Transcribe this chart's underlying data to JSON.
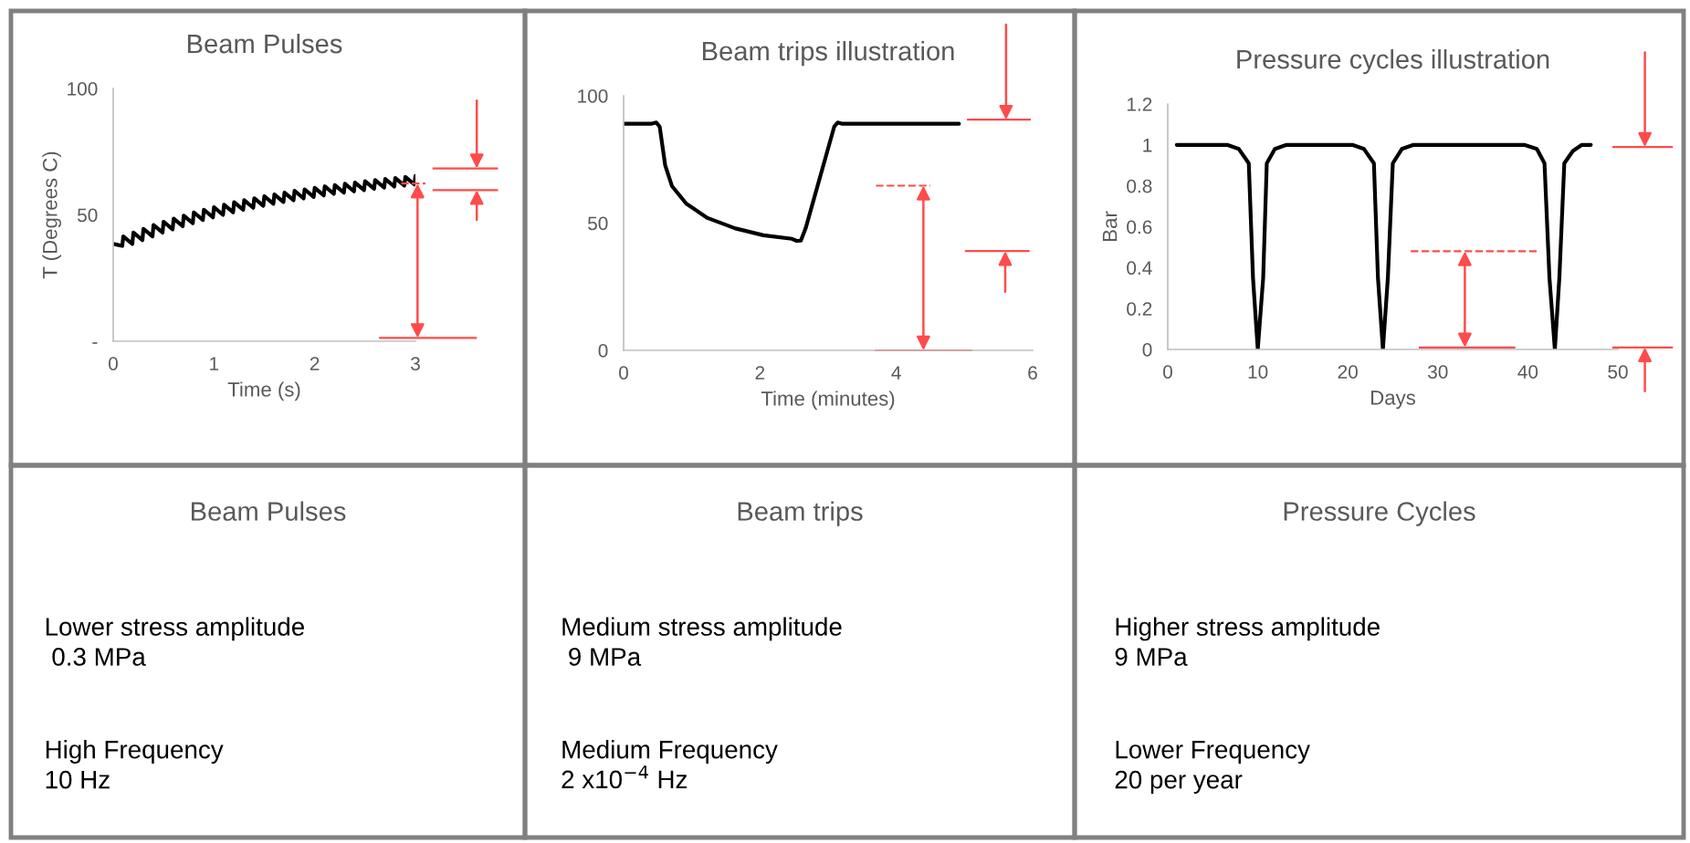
{
  "chart_data": [
    {
      "type": "line",
      "title": "Beam Pulses",
      "xlabel": "Time (s)",
      "ylabel": "T (Degrees C)",
      "xlim": [
        0,
        3
      ],
      "ylim": [
        0,
        100
      ],
      "xticks": [
        0,
        1,
        2,
        3
      ],
      "yticks": [
        {
          "value": 0,
          "label": "-"
        },
        50,
        100
      ],
      "series": [
        {
          "color": "#000000",
          "x": [
            0,
            0.09,
            0.1,
            0.19,
            0.2,
            0.29,
            0.3,
            0.39,
            0.4,
            0.49,
            0.5,
            0.59,
            0.6,
            0.69,
            0.7,
            0.79,
            0.8,
            0.89,
            0.9,
            0.99,
            1.0,
            1.09,
            1.1,
            1.19,
            1.2,
            1.29,
            1.3,
            1.39,
            1.4,
            1.49,
            1.5,
            1.59,
            1.6,
            1.69,
            1.7,
            1.79,
            1.8,
            1.89,
            1.9,
            1.99,
            2.0,
            2.09,
            2.1,
            2.19,
            2.2,
            2.29,
            2.3,
            2.39,
            2.4,
            2.49,
            2.5,
            2.59,
            2.6,
            2.69,
            2.7,
            2.79,
            2.8,
            2.89,
            2.9,
            2.99,
            3.0
          ],
          "values": [
            38.5,
            37.7,
            41.5,
            38.5,
            43,
            40,
            44.5,
            41.5,
            46,
            43,
            47.3,
            44.3,
            48.5,
            45.5,
            49.7,
            46.7,
            51,
            48,
            52,
            49,
            53,
            50,
            54,
            51,
            55,
            52,
            55.8,
            52.8,
            56.6,
            53.6,
            57.4,
            54.4,
            58.1,
            55.1,
            58.8,
            55.8,
            59.5,
            56.5,
            60.1,
            57.1,
            60.7,
            57.7,
            61.3,
            58.3,
            61.8,
            58.8,
            62.3,
            59.3,
            62.8,
            59.8,
            63.3,
            60.3,
            63.8,
            60.8,
            64.2,
            61.2,
            64.6,
            61.6,
            65,
            62,
            65.4
          ]
        }
      ]
    },
    {
      "type": "line",
      "title": "Beam trips illustration",
      "xlabel": "Time (minutes)",
      "xlim": [
        0,
        6
      ],
      "ylim": [
        0,
        100
      ],
      "xticks": [
        0,
        2,
        4,
        6
      ],
      "yticks": [
        0,
        50,
        100
      ],
      "series": [
        {
          "color": "#000000",
          "x": [
            0,
            0.4,
            0.48,
            0.53,
            0.61,
            0.71,
            0.92,
            1.23,
            1.64,
            2.05,
            2.47,
            2.54,
            2.6,
            2.67,
            3.09,
            3.14,
            3.21,
            4.92
          ],
          "values": [
            89,
            89,
            89.5,
            87.8,
            72.7,
            64.5,
            57.6,
            52,
            47.9,
            45.2,
            43.8,
            43,
            43.1,
            47.9,
            87.9,
            89.5,
            89,
            89
          ]
        }
      ]
    },
    {
      "type": "line",
      "title": "Pressure cycles illustration",
      "xlabel": "Days",
      "ylabel": "Bar",
      "xlim": [
        0,
        50
      ],
      "ylim": [
        0,
        1.2
      ],
      "xticks": [
        0,
        10,
        20,
        30,
        40,
        50
      ],
      "yticks": [
        0,
        0.2,
        0.4,
        0.6,
        0.8,
        1,
        1.2
      ],
      "series": [
        {
          "color": "#000000",
          "x": [
            1,
            6.6,
            7.9,
            9,
            9.47,
            10,
            10.6,
            11,
            11.9,
            13.2,
            20.5,
            21.8,
            22.9,
            23.35,
            23.9,
            24.45,
            25,
            26,
            27.3,
            39.6,
            41,
            41.85,
            42.4,
            43,
            43.5,
            44.05,
            45,
            46,
            47
          ],
          "values": [
            1,
            1,
            0.98,
            0.91,
            0.35,
            0,
            0.35,
            0.91,
            0.98,
            1,
            1,
            0.98,
            0.91,
            0.35,
            0,
            0.35,
            0.91,
            0.98,
            1,
            1,
            0.98,
            0.91,
            0.35,
            0,
            0.35,
            0.91,
            0.97,
            1,
            1
          ]
        }
      ]
    },
    {
      "type": "other",
      "title": "Beam Pulses",
      "annotations": [
        "Lower stress amplitude\n 0.3 MPa",
        "High Frequency\n10 Hz"
      ]
    },
    {
      "type": "other",
      "title": "Beam trips",
      "annotations": [
        "Medium stress amplitude\n 9 MPa",
        "Medium Frequency\n2 x10$^{−4}$ Hz"
      ]
    },
    {
      "type": "other",
      "title": "Pressure Cycles",
      "annotations": [
        "Higher stress amplitude\n9 MPa",
        "Lower Frequency\n20 per year"
      ]
    }
  ]
}
